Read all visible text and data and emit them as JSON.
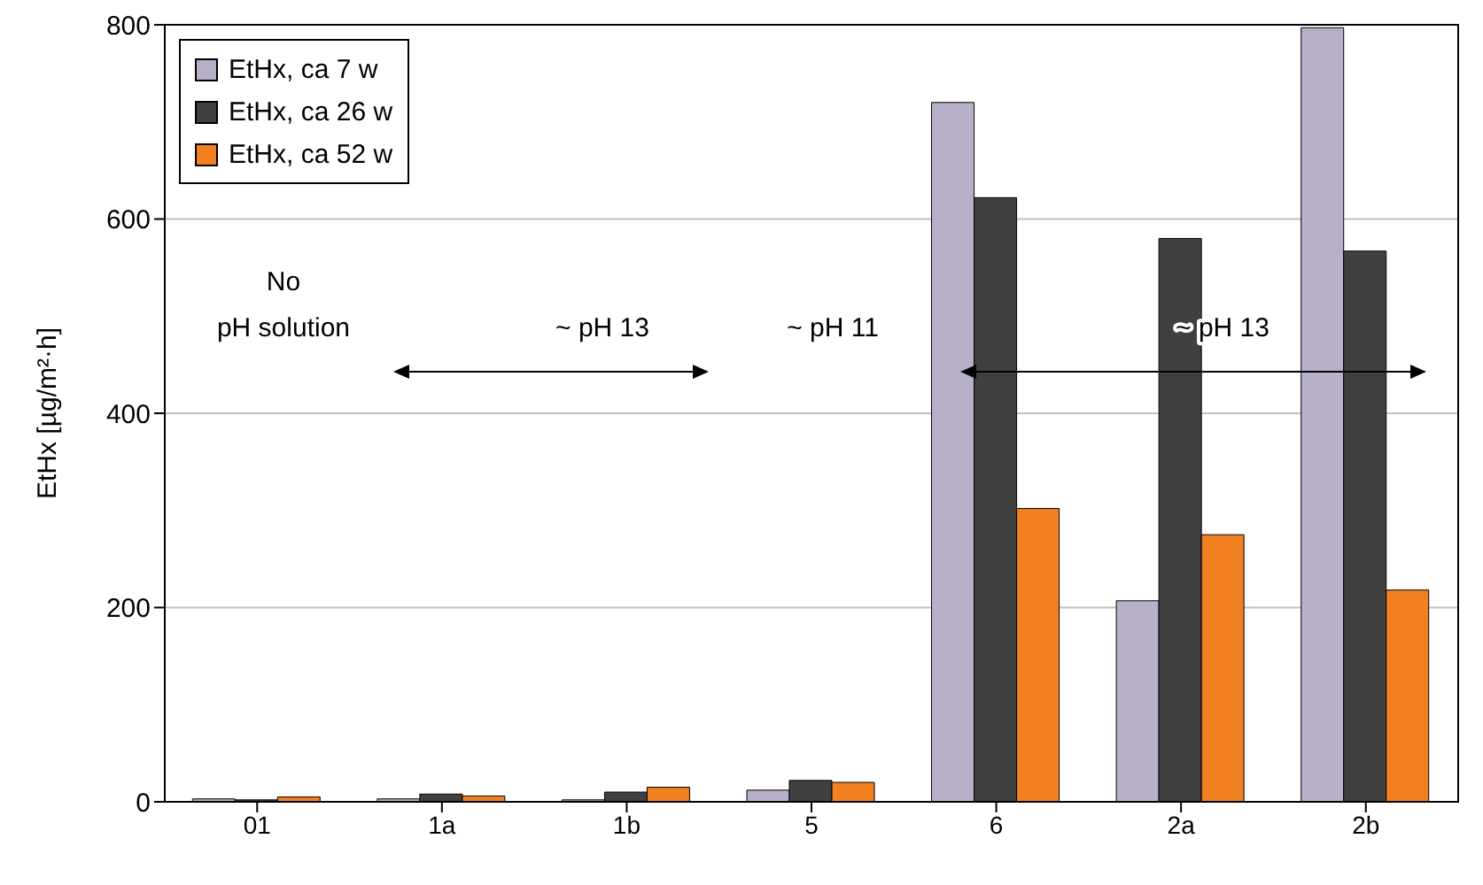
{
  "chart_data": {
    "type": "bar",
    "ylabel": "EtHx [µg/m²·h]",
    "categories": [
      "01",
      "1a",
      "1b",
      "5",
      "6",
      "2a",
      "2b"
    ],
    "series": [
      {
        "name": "EtHx, ca 7 w",
        "color": "#b8b0c8",
        "values": [
          3,
          3,
          2,
          12,
          720,
          207,
          797
        ]
      },
      {
        "name": "EtHx, ca 26 w",
        "color": "#404040",
        "values": [
          2,
          8,
          10,
          22,
          622,
          580,
          567
        ]
      },
      {
        "name": "EtHx, ca 52 w",
        "color": "#f08020",
        "values": [
          5,
          6,
          15,
          20,
          302,
          275,
          218
        ]
      }
    ],
    "ylim": [
      0,
      800
    ],
    "yticks": [
      0,
      200,
      400,
      600,
      800
    ],
    "grid": "y",
    "legend": "top left",
    "annotations": [
      "No\npH solution",
      "~ pH 13",
      "~ pH 11",
      "~ pH 13"
    ]
  }
}
